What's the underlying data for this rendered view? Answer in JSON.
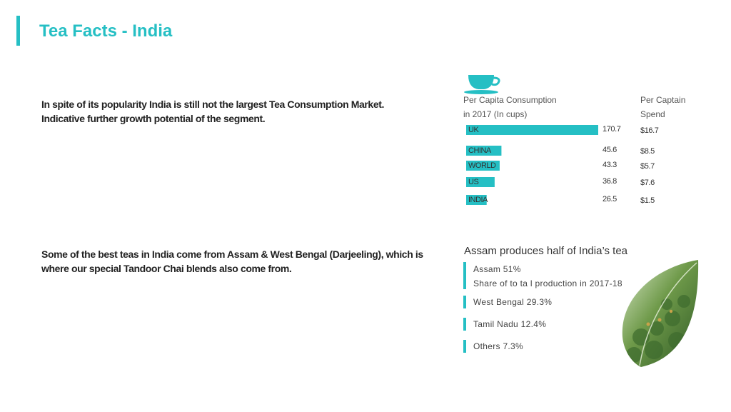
{
  "title": "Tea Facts - India",
  "paragraph_1": "In spite of its popularity India is still not the largest Tea Consumption Market. Indicative further growth potential of the segment.",
  "paragraph_2": "Some of the best teas in India come from Assam & West Bengal (Darjeeling), which is where our special Tandoor Chai blends also come from.",
  "icons": {
    "cup": "teacup-icon",
    "leaf": "tea-leaf-icon"
  },
  "colors": {
    "accent": "#25bfc4",
    "text": "#333333"
  },
  "chart_data": {
    "type": "bar",
    "orientation": "horizontal",
    "header_consumption": [
      "Per Capita Consumption",
      "in 2017 (In cups)"
    ],
    "header_spend": [
      "Per Captain",
      "Spend"
    ],
    "categories": [
      "UK",
      "CHINA",
      "WORLD",
      "US",
      "INDIA"
    ],
    "values": [
      170.7,
      45.6,
      43.3,
      36.8,
      26.5
    ],
    "value_labels": [
      "170.7",
      "45.6",
      "43.3",
      "36.8",
      "26.5"
    ],
    "spend": [
      "$16.7",
      "$8.5",
      "$5.7",
      "$7.6",
      "$1.5"
    ],
    "xlim": [
      0,
      170.7
    ]
  },
  "assam": {
    "title": "Assam produces half of India’s tea",
    "stats": [
      {
        "label": "Assam 51%",
        "sub": "Share of to ta l production in 2017-18"
      },
      {
        "label": "West Bengal 29.3%"
      },
      {
        "label": "Tamil Nadu 12.4%"
      },
      {
        "label": "Others 7.3%"
      }
    ]
  }
}
